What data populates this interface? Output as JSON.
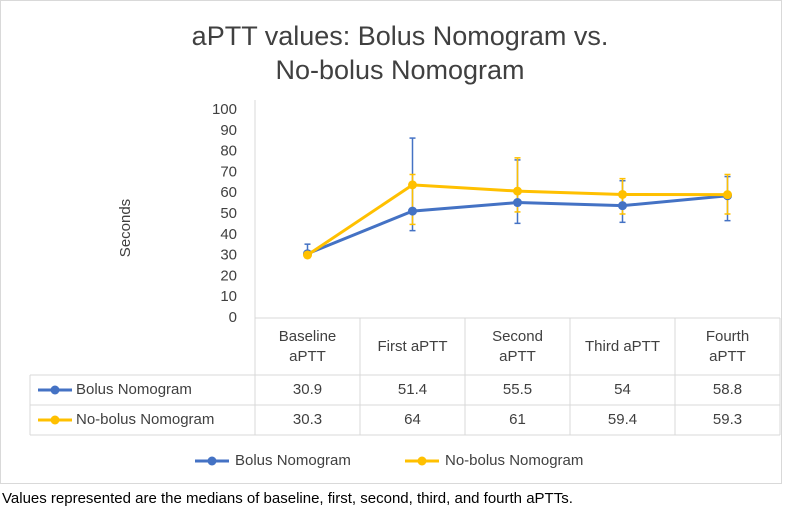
{
  "chart_data": {
    "type": "line",
    "title": "aPTT values: Bolus Nomogram vs. No-bolus Nomogram",
    "y_label": "Seconds",
    "categories": [
      "Baseline aPTT",
      "First aPTT",
      "Second aPTT",
      "Third aPTT",
      "Fourth aPTT"
    ],
    "series": [
      {
        "name": "Bolus Nomogram",
        "color": "#4472c4",
        "values": [
          30.9,
          51.4,
          55.5,
          54,
          58.8
        ],
        "errors_minus": [
          1,
          9.4,
          10,
          8,
          12
        ],
        "errors_plus": [
          4.6,
          35.1,
          20.5,
          12,
          9.2
        ]
      },
      {
        "name": "No-bolus Nomogram",
        "color": "#ffc000",
        "values": [
          30.3,
          64,
          61,
          59.4,
          59.3
        ],
        "errors_minus": [
          1,
          19,
          10,
          9.4,
          9.3
        ],
        "errors_plus": [
          1,
          5,
          16,
          7.6,
          9.7
        ]
      }
    ],
    "ylim": [
      0,
      100
    ],
    "yticks": [
      0,
      10,
      20,
      30,
      40,
      50,
      60,
      70,
      80,
      90,
      100
    ],
    "data_table": true,
    "footnote": "Values represented are the medians of baseline, first, second, third, and fourth aPTTs."
  }
}
